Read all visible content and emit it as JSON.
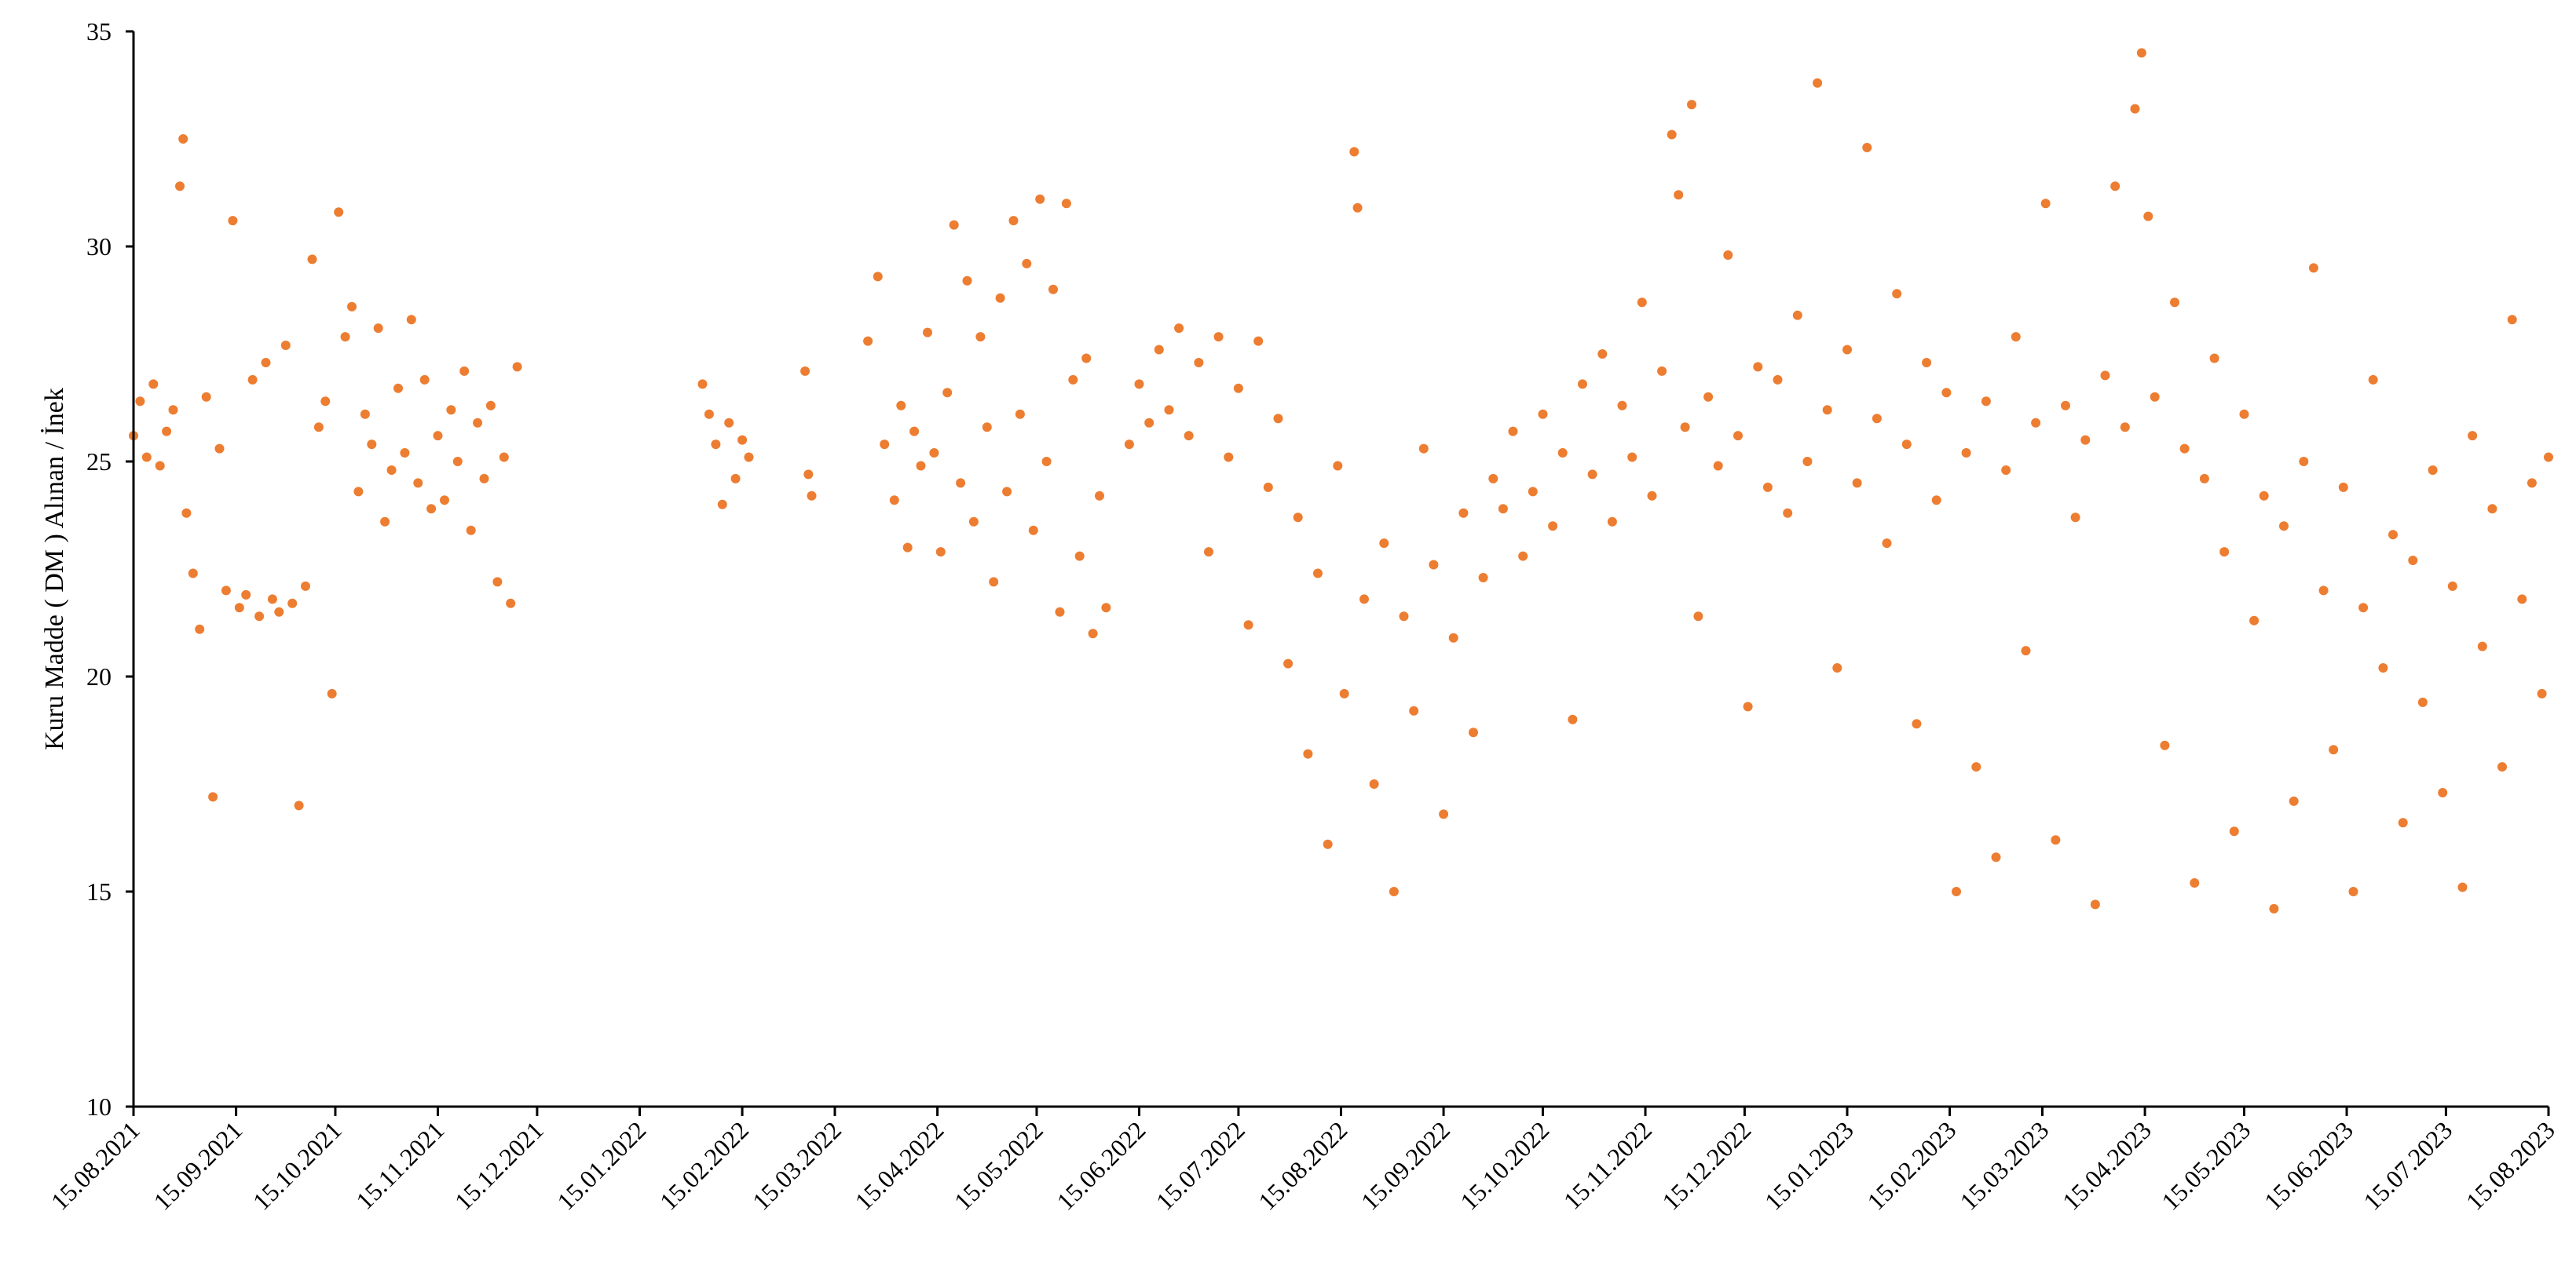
{
  "chart_data": {
    "type": "scatter",
    "title": "",
    "xlabel": "",
    "ylabel": "Kuru Madde ( DM ) Alınan / İnek",
    "ylim": [
      10,
      35
    ],
    "yticks": [
      10,
      15,
      20,
      25,
      30,
      35
    ],
    "xticks": [
      "15.08.2021",
      "15.09.2021",
      "15.10.2021",
      "15.11.2021",
      "15.12.2021",
      "15.01.2022",
      "15.02.2022",
      "15.03.2022",
      "15.04.2022",
      "15.05.2022",
      "15.06.2022",
      "15.07.2022",
      "15.08.2022",
      "15.09.2022",
      "15.10.2022",
      "15.11.2022",
      "15.12.2022",
      "15.01.2023",
      "15.02.2023",
      "15.03.2023",
      "15.04.2023",
      "15.05.2023",
      "15.06.2023",
      "15.07.2023",
      "15.08.2023"
    ],
    "xlim": [
      "15.08.2021",
      "15.08.2023"
    ],
    "grid": false,
    "marker_color": "#ED7D31",
    "series": [
      {
        "points": [
          [
            "15.08.2021",
            25.6
          ],
          [
            "17.08.2021",
            26.4
          ],
          [
            "19.08.2021",
            25.1
          ],
          [
            "21.08.2021",
            26.8
          ],
          [
            "23.08.2021",
            24.9
          ],
          [
            "25.08.2021",
            25.7
          ],
          [
            "27.08.2021",
            26.2
          ],
          [
            "29.08.2021",
            31.4
          ],
          [
            "30.08.2021",
            32.5
          ],
          [
            "31.08.2021",
            23.8
          ],
          [
            "02.09.2021",
            22.4
          ],
          [
            "04.09.2021",
            21.1
          ],
          [
            "06.09.2021",
            26.5
          ],
          [
            "08.09.2021",
            17.2
          ],
          [
            "10.09.2021",
            25.3
          ],
          [
            "12.09.2021",
            22.0
          ],
          [
            "14.09.2021",
            30.6
          ],
          [
            "16.09.2021",
            21.6
          ],
          [
            "18.09.2021",
            21.9
          ],
          [
            "20.09.2021",
            26.9
          ],
          [
            "22.09.2021",
            21.4
          ],
          [
            "24.09.2021",
            27.3
          ],
          [
            "26.09.2021",
            21.8
          ],
          [
            "28.09.2021",
            21.5
          ],
          [
            "30.09.2021",
            27.7
          ],
          [
            "02.10.2021",
            21.7
          ],
          [
            "04.10.2021",
            17.0
          ],
          [
            "06.10.2021",
            22.1
          ],
          [
            "08.10.2021",
            29.7
          ],
          [
            "10.10.2021",
            25.8
          ],
          [
            "12.10.2021",
            26.4
          ],
          [
            "14.10.2021",
            19.6
          ],
          [
            "16.10.2021",
            30.8
          ],
          [
            "18.10.2021",
            27.9
          ],
          [
            "20.10.2021",
            28.6
          ],
          [
            "22.10.2021",
            24.3
          ],
          [
            "24.10.2021",
            26.1
          ],
          [
            "26.10.2021",
            25.4
          ],
          [
            "28.10.2021",
            28.1
          ],
          [
            "30.10.2021",
            23.6
          ],
          [
            "01.11.2021",
            24.8
          ],
          [
            "03.11.2021",
            26.7
          ],
          [
            "05.11.2021",
            25.2
          ],
          [
            "07.11.2021",
            28.3
          ],
          [
            "09.11.2021",
            24.5
          ],
          [
            "11.11.2021",
            26.9
          ],
          [
            "13.11.2021",
            23.9
          ],
          [
            "15.11.2021",
            25.6
          ],
          [
            "17.11.2021",
            24.1
          ],
          [
            "19.11.2021",
            26.2
          ],
          [
            "21.11.2021",
            25.0
          ],
          [
            "23.11.2021",
            27.1
          ],
          [
            "25.11.2021",
            23.4
          ],
          [
            "27.11.2021",
            25.9
          ],
          [
            "29.11.2021",
            24.6
          ],
          [
            "01.12.2021",
            26.3
          ],
          [
            "03.12.2021",
            22.2
          ],
          [
            "05.12.2021",
            25.1
          ],
          [
            "07.12.2021",
            21.7
          ],
          [
            "09.12.2021",
            27.2
          ],
          [
            "03.02.2022",
            26.8
          ],
          [
            "05.02.2022",
            26.1
          ],
          [
            "07.02.2022",
            25.4
          ],
          [
            "09.02.2022",
            24.0
          ],
          [
            "11.02.2022",
            25.9
          ],
          [
            "13.02.2022",
            24.6
          ],
          [
            "15.02.2022",
            25.5
          ],
          [
            "17.02.2022",
            25.1
          ],
          [
            "06.03.2022",
            27.1
          ],
          [
            "07.03.2022",
            24.7
          ],
          [
            "08.03.2022",
            24.2
          ],
          [
            "25.03.2022",
            27.8
          ],
          [
            "28.03.2022",
            29.3
          ],
          [
            "30.03.2022",
            25.4
          ],
          [
            "02.04.2022",
            24.1
          ],
          [
            "04.04.2022",
            26.3
          ],
          [
            "06.04.2022",
            23.0
          ],
          [
            "08.04.2022",
            25.7
          ],
          [
            "10.04.2022",
            24.9
          ],
          [
            "12.04.2022",
            28.0
          ],
          [
            "14.04.2022",
            25.2
          ],
          [
            "16.04.2022",
            22.9
          ],
          [
            "18.04.2022",
            26.6
          ],
          [
            "20.04.2022",
            30.5
          ],
          [
            "22.04.2022",
            24.5
          ],
          [
            "24.04.2022",
            29.2
          ],
          [
            "26.04.2022",
            23.6
          ],
          [
            "28.04.2022",
            27.9
          ],
          [
            "30.04.2022",
            25.8
          ],
          [
            "02.05.2022",
            22.2
          ],
          [
            "04.05.2022",
            28.8
          ],
          [
            "06.05.2022",
            24.3
          ],
          [
            "08.05.2022",
            30.6
          ],
          [
            "10.05.2022",
            26.1
          ],
          [
            "12.05.2022",
            29.6
          ],
          [
            "14.05.2022",
            23.4
          ],
          [
            "16.05.2022",
            31.1
          ],
          [
            "18.05.2022",
            25.0
          ],
          [
            "20.05.2022",
            29.0
          ],
          [
            "22.05.2022",
            21.5
          ],
          [
            "24.05.2022",
            31.0
          ],
          [
            "26.05.2022",
            26.9
          ],
          [
            "28.05.2022",
            22.8
          ],
          [
            "30.05.2022",
            27.4
          ],
          [
            "01.06.2022",
            21.0
          ],
          [
            "03.06.2022",
            24.2
          ],
          [
            "05.06.2022",
            21.6
          ],
          [
            "12.06.2022",
            25.4
          ],
          [
            "15.06.2022",
            26.8
          ],
          [
            "18.06.2022",
            25.9
          ],
          [
            "21.06.2022",
            27.6
          ],
          [
            "24.06.2022",
            26.2
          ],
          [
            "27.06.2022",
            28.1
          ],
          [
            "30.06.2022",
            25.6
          ],
          [
            "03.07.2022",
            27.3
          ],
          [
            "06.07.2022",
            22.9
          ],
          [
            "09.07.2022",
            27.9
          ],
          [
            "12.07.2022",
            25.1
          ],
          [
            "15.07.2022",
            26.7
          ],
          [
            "18.07.2022",
            21.2
          ],
          [
            "21.07.2022",
            27.8
          ],
          [
            "24.07.2022",
            24.4
          ],
          [
            "27.07.2022",
            26.0
          ],
          [
            "30.07.2022",
            20.3
          ],
          [
            "02.08.2022",
            23.7
          ],
          [
            "05.08.2022",
            18.2
          ],
          [
            "08.08.2022",
            22.4
          ],
          [
            "11.08.2022",
            16.1
          ],
          [
            "14.08.2022",
            24.9
          ],
          [
            "16.08.2022",
            19.6
          ],
          [
            "19.08.2022",
            32.2
          ],
          [
            "20.08.2022",
            30.9
          ],
          [
            "22.08.2022",
            21.8
          ],
          [
            "25.08.2022",
            17.5
          ],
          [
            "28.08.2022",
            23.1
          ],
          [
            "31.08.2022",
            15.0
          ],
          [
            "03.09.2022",
            21.4
          ],
          [
            "06.09.2022",
            19.2
          ],
          [
            "09.09.2022",
            25.3
          ],
          [
            "12.09.2022",
            22.6
          ],
          [
            "15.09.2022",
            16.8
          ],
          [
            "18.09.2022",
            20.9
          ],
          [
            "21.09.2022",
            23.8
          ],
          [
            "24.09.2022",
            18.7
          ],
          [
            "27.09.2022",
            22.3
          ],
          [
            "30.09.2022",
            24.6
          ],
          [
            "03.10.2022",
            23.9
          ],
          [
            "06.10.2022",
            25.7
          ],
          [
            "09.10.2022",
            22.8
          ],
          [
            "12.10.2022",
            24.3
          ],
          [
            "15.10.2022",
            26.1
          ],
          [
            "18.10.2022",
            23.5
          ],
          [
            "21.10.2022",
            25.2
          ],
          [
            "24.10.2022",
            19.0
          ],
          [
            "27.10.2022",
            26.8
          ],
          [
            "30.10.2022",
            24.7
          ],
          [
            "02.11.2022",
            27.5
          ],
          [
            "05.11.2022",
            23.6
          ],
          [
            "08.11.2022",
            26.3
          ],
          [
            "11.11.2022",
            25.1
          ],
          [
            "14.11.2022",
            28.7
          ],
          [
            "17.11.2022",
            24.2
          ],
          [
            "20.11.2022",
            27.1
          ],
          [
            "23.11.2022",
            32.6
          ],
          [
            "25.11.2022",
            31.2
          ],
          [
            "27.11.2022",
            25.8
          ],
          [
            "29.11.2022",
            33.3
          ],
          [
            "01.12.2022",
            21.4
          ],
          [
            "04.12.2022",
            26.5
          ],
          [
            "07.12.2022",
            24.9
          ],
          [
            "10.12.2022",
            29.8
          ],
          [
            "13.12.2022",
            25.6
          ],
          [
            "16.12.2022",
            19.3
          ],
          [
            "19.12.2022",
            27.2
          ],
          [
            "22.12.2022",
            24.4
          ],
          [
            "25.12.2022",
            26.9
          ],
          [
            "28.12.2022",
            23.8
          ],
          [
            "31.12.2022",
            28.4
          ],
          [
            "03.01.2023",
            25.0
          ],
          [
            "06.01.2023",
            33.8
          ],
          [
            "09.01.2023",
            26.2
          ],
          [
            "12.01.2023",
            20.2
          ],
          [
            "15.01.2023",
            27.6
          ],
          [
            "18.01.2023",
            24.5
          ],
          [
            "21.01.2023",
            32.3
          ],
          [
            "24.01.2023",
            26.0
          ],
          [
            "27.01.2023",
            23.1
          ],
          [
            "30.01.2023",
            28.9
          ],
          [
            "02.02.2023",
            25.4
          ],
          [
            "05.02.2023",
            18.9
          ],
          [
            "08.02.2023",
            27.3
          ],
          [
            "11.02.2023",
            24.1
          ],
          [
            "14.02.2023",
            26.6
          ],
          [
            "17.02.2023",
            15.0
          ],
          [
            "20.02.2023",
            25.2
          ],
          [
            "23.02.2023",
            17.9
          ],
          [
            "26.02.2023",
            26.4
          ],
          [
            "01.03.2023",
            15.8
          ],
          [
            "04.03.2023",
            24.8
          ],
          [
            "07.03.2023",
            27.9
          ],
          [
            "10.03.2023",
            20.6
          ],
          [
            "13.03.2023",
            25.9
          ],
          [
            "16.03.2023",
            31.0
          ],
          [
            "19.03.2023",
            16.2
          ],
          [
            "22.03.2023",
            26.3
          ],
          [
            "25.03.2023",
            23.7
          ],
          [
            "28.03.2023",
            25.5
          ],
          [
            "31.03.2023",
            14.7
          ],
          [
            "03.04.2023",
            27.0
          ],
          [
            "06.04.2023",
            31.4
          ],
          [
            "09.04.2023",
            25.8
          ],
          [
            "12.04.2023",
            33.2
          ],
          [
            "14.04.2023",
            34.5
          ],
          [
            "16.04.2023",
            30.7
          ],
          [
            "18.04.2023",
            26.5
          ],
          [
            "21.04.2023",
            18.4
          ],
          [
            "24.04.2023",
            28.7
          ],
          [
            "27.04.2023",
            25.3
          ],
          [
            "30.04.2023",
            15.2
          ],
          [
            "03.05.2023",
            24.6
          ],
          [
            "06.05.2023",
            27.4
          ],
          [
            "09.05.2023",
            22.9
          ],
          [
            "12.05.2023",
            16.4
          ],
          [
            "15.05.2023",
            26.1
          ],
          [
            "18.05.2023",
            21.3
          ],
          [
            "21.05.2023",
            24.2
          ],
          [
            "24.05.2023",
            14.6
          ],
          [
            "27.05.2023",
            23.5
          ],
          [
            "30.05.2023",
            17.1
          ],
          [
            "02.06.2023",
            25.0
          ],
          [
            "05.06.2023",
            29.5
          ],
          [
            "08.06.2023",
            22.0
          ],
          [
            "11.06.2023",
            18.3
          ],
          [
            "14.06.2023",
            24.4
          ],
          [
            "17.06.2023",
            15.0
          ],
          [
            "20.06.2023",
            21.6
          ],
          [
            "23.06.2023",
            26.9
          ],
          [
            "26.06.2023",
            20.2
          ],
          [
            "29.06.2023",
            23.3
          ],
          [
            "02.07.2023",
            16.6
          ],
          [
            "05.07.2023",
            22.7
          ],
          [
            "08.07.2023",
            19.4
          ],
          [
            "11.07.2023",
            24.8
          ],
          [
            "14.07.2023",
            17.3
          ],
          [
            "17.07.2023",
            22.1
          ],
          [
            "20.07.2023",
            15.1
          ],
          [
            "23.07.2023",
            25.6
          ],
          [
            "26.07.2023",
            20.7
          ],
          [
            "29.07.2023",
            23.9
          ],
          [
            "01.08.2023",
            17.9
          ],
          [
            "04.08.2023",
            28.3
          ],
          [
            "07.08.2023",
            21.8
          ],
          [
            "10.08.2023",
            24.5
          ],
          [
            "13.08.2023",
            19.6
          ],
          [
            "15.08.2023",
            25.1
          ]
        ]
      }
    ]
  }
}
